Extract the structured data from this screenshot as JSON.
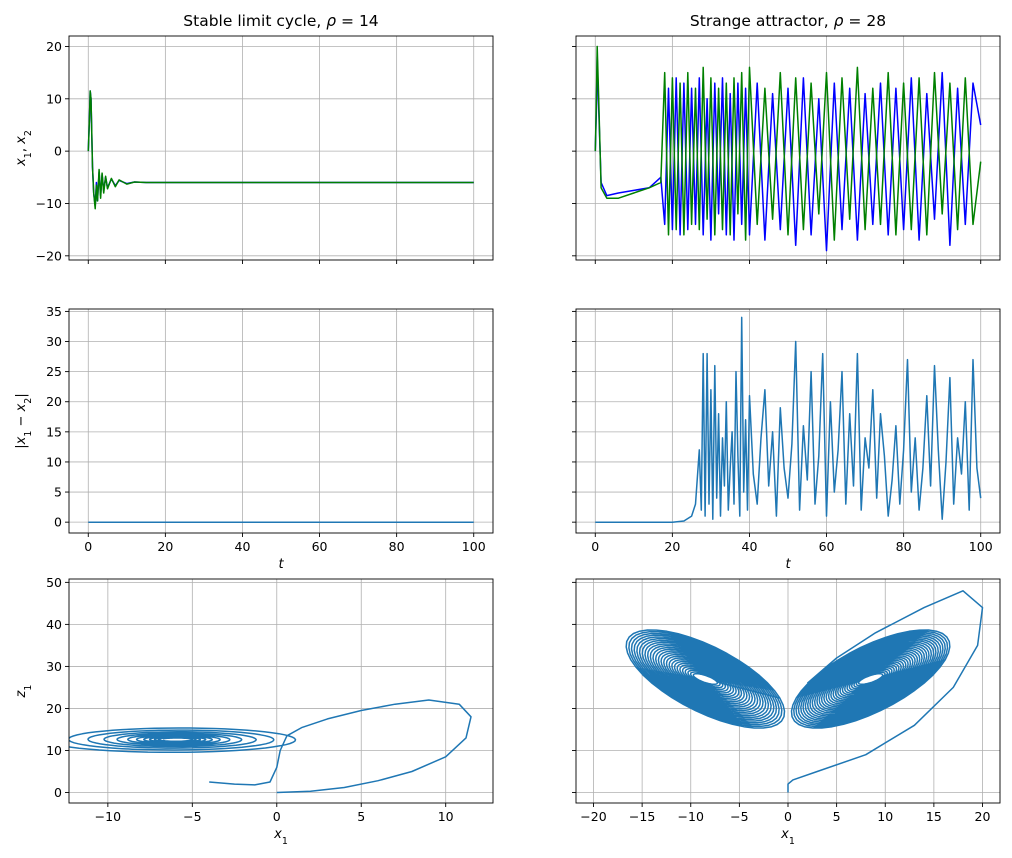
{
  "figure": {
    "colors": {
      "blue": "#0000ff",
      "green": "#008000",
      "tab_blue": "#1f77b4",
      "grid": "#b0b0b0"
    }
  },
  "chart_data": [
    {
      "id": "ts14",
      "type": "line",
      "title": "Stable limit cycle, ρ = 14",
      "xlabel": "",
      "ylabel": "x1, x2",
      "xlim": [
        -5,
        105
      ],
      "ylim": [
        -20.8,
        22
      ],
      "xticks": [
        0,
        20,
        40,
        60,
        80,
        100
      ],
      "xtick_labels": [],
      "yticks": [
        -20,
        -10,
        0,
        10,
        20
      ],
      "ytick_labels": [
        "−20",
        "−10",
        "0",
        "10",
        "20"
      ],
      "grid": true,
      "series": [
        {
          "color": "#0000ff",
          "x": [
            0,
            0.3,
            0.5,
            0.7,
            0.9,
            1.1,
            1.4,
            1.8,
            2.1,
            2.4,
            2.8,
            3.2,
            3.6,
            4.0,
            4.5,
            5.0,
            6,
            7,
            8,
            10,
            12,
            15,
            20,
            100
          ],
          "y": [
            0,
            6,
            11.5,
            10,
            4,
            -3,
            -8,
            -10.5,
            -6,
            -9.5,
            -4,
            -8.5,
            -4.5,
            -7.5,
            -5,
            -7,
            -5.3,
            -6.6,
            -5.6,
            -6.2,
            -5.9,
            -6,
            -6,
            -6
          ]
        },
        {
          "color": "#008000",
          "x": [
            0,
            0.3,
            0.5,
            0.7,
            0.9,
            1.1,
            1.4,
            1.8,
            2.1,
            2.4,
            2.8,
            3.2,
            3.6,
            4.0,
            4.5,
            5.0,
            6,
            7,
            8,
            10,
            12,
            15,
            20,
            100
          ],
          "y": [
            0,
            6,
            11.5,
            10,
            4,
            -3,
            -8,
            -11,
            -6.5,
            -9.5,
            -3.5,
            -9,
            -4.2,
            -8,
            -4.8,
            -7.2,
            -5.2,
            -6.8,
            -5.5,
            -6.3,
            -5.9,
            -6,
            -6,
            -6
          ]
        }
      ]
    },
    {
      "id": "ts28",
      "type": "line",
      "title": "Strange attractor, ρ = 28",
      "xlabel": "",
      "ylabel": "",
      "xlim": [
        -5,
        105
      ],
      "ylim": [
        -20.8,
        22
      ],
      "xticks": [
        0,
        20,
        40,
        60,
        80,
        100
      ],
      "xtick_labels": [],
      "yticks": [
        -20,
        -10,
        0,
        10,
        20
      ],
      "ytick_labels": [],
      "grid": true,
      "series": [
        {
          "color": "#0000ff",
          "x": [
            0,
            0.3,
            0.5,
            0.8,
            1.5,
            3,
            6,
            10,
            14,
            17,
            18,
            19,
            20,
            21,
            22,
            23,
            24,
            25,
            26,
            27,
            28,
            29,
            30,
            31,
            32,
            33,
            34,
            35,
            36,
            37,
            38,
            39,
            40,
            42,
            44,
            46,
            48,
            50,
            52,
            54,
            56,
            58,
            60,
            62,
            64,
            66,
            68,
            70,
            72,
            74,
            76,
            78,
            80,
            82,
            84,
            86,
            88,
            90,
            92,
            94,
            96,
            98,
            100
          ],
          "y": [
            0,
            8,
            18,
            10,
            -6,
            -8.5,
            -8,
            -7.5,
            -7,
            -5,
            -14,
            12,
            -15,
            14,
            -16,
            13,
            -15,
            12,
            -14,
            14,
            -16,
            10,
            -17,
            13,
            -12,
            14,
            -16,
            11,
            -17,
            13,
            -14,
            12,
            -16,
            13,
            -17,
            11,
            -15,
            12,
            -18,
            14,
            -16,
            10,
            -19,
            13,
            -15,
            12,
            -17,
            11,
            -14,
            13,
            -16,
            12,
            -15,
            14,
            -17,
            11,
            -13,
            15,
            -18,
            12,
            -14,
            13,
            5
          ]
        },
        {
          "color": "#008000",
          "x": [
            0,
            0.3,
            0.5,
            0.8,
            1.5,
            3,
            6,
            10,
            14,
            17,
            18,
            19,
            20,
            21,
            22,
            23,
            24,
            25,
            26,
            27,
            28,
            29,
            30,
            31,
            32,
            33,
            34,
            35,
            36,
            37,
            38,
            39,
            40,
            42,
            44,
            46,
            48,
            50,
            52,
            54,
            56,
            58,
            60,
            62,
            64,
            66,
            68,
            70,
            72,
            74,
            76,
            78,
            80,
            82,
            84,
            86,
            88,
            90,
            92,
            94,
            96,
            98,
            100
          ],
          "y": [
            0,
            10,
            20,
            12,
            -7,
            -9,
            -9,
            -8,
            -7,
            -6,
            15,
            -16,
            14,
            -15,
            13,
            -16,
            15,
            -14,
            12,
            -15,
            16,
            -13,
            14,
            -16,
            12,
            -15,
            13,
            -16,
            14,
            -12,
            15,
            -17,
            16,
            -14,
            12,
            -13,
            15,
            -16,
            14,
            -15,
            13,
            -12,
            15,
            -17,
            14,
            -13,
            16,
            -15,
            12,
            -14,
            15,
            -16,
            13,
            -15,
            14,
            -16,
            15,
            -12,
            13,
            -15,
            14,
            -14,
            -2
          ]
        }
      ]
    },
    {
      "id": "diff14",
      "type": "line",
      "title": "",
      "xlabel": "t",
      "ylabel": "|x1 − x2|",
      "xlim": [
        -5,
        105
      ],
      "ylim": [
        -1.8,
        35.4
      ],
      "xticks": [
        0,
        20,
        40,
        60,
        80,
        100
      ],
      "xtick_labels": [
        "0",
        "20",
        "40",
        "60",
        "80",
        "100"
      ],
      "yticks": [
        0,
        5,
        10,
        15,
        20,
        25,
        30,
        35
      ],
      "ytick_labels": [
        "0",
        "5",
        "10",
        "15",
        "20",
        "25",
        "30",
        "35"
      ],
      "grid": true,
      "series": [
        {
          "color": "#1f77b4",
          "x": [
            0,
            100
          ],
          "y": [
            0,
            0
          ]
        }
      ]
    },
    {
      "id": "diff28",
      "type": "line",
      "title": "",
      "xlabel": "t",
      "ylabel": "",
      "xlim": [
        -5,
        105
      ],
      "ylim": [
        -1.8,
        35.4
      ],
      "xticks": [
        0,
        20,
        40,
        60,
        80,
        100
      ],
      "xtick_labels": [
        "0",
        "20",
        "40",
        "60",
        "80",
        "100"
      ],
      "yticks": [
        0,
        5,
        10,
        15,
        20,
        25,
        30,
        35
      ],
      "ytick_labels": [],
      "grid": true,
      "series": [
        {
          "color": "#1f77b4",
          "x": [
            0,
            20,
            23,
            25,
            26,
            27,
            27.5,
            28,
            28.5,
            29,
            29.5,
            30,
            30.5,
            31,
            31.5,
            32,
            32.5,
            33,
            33.5,
            34,
            34.5,
            35,
            35.5,
            36,
            36.5,
            37,
            37.5,
            38,
            38.5,
            39,
            39.5,
            40,
            41,
            42,
            43,
            44,
            45,
            46,
            47,
            48,
            49,
            50,
            51,
            52,
            53,
            54,
            55,
            56,
            57,
            58,
            59,
            60,
            61,
            62,
            63,
            64,
            65,
            66,
            67,
            68,
            69,
            70,
            71,
            72,
            73,
            74,
            75,
            76,
            77,
            78,
            79,
            80,
            81,
            82,
            83,
            84,
            85,
            86,
            87,
            88,
            89,
            90,
            91,
            92,
            93,
            94,
            95,
            96,
            97,
            98,
            99,
            100
          ],
          "y": [
            0,
            0,
            0.2,
            1,
            3,
            12,
            2,
            28,
            1,
            28,
            3,
            22,
            0.5,
            26,
            4,
            18,
            1,
            14,
            6,
            20,
            2,
            9,
            15,
            3,
            25,
            11,
            1,
            34,
            5,
            17,
            2,
            21,
            8,
            3,
            14,
            22,
            6,
            15,
            1,
            19,
            9,
            4,
            13,
            30,
            2,
            16,
            7,
            25,
            3,
            11,
            28,
            1,
            20,
            5,
            12,
            25,
            3,
            18,
            6,
            28,
            2,
            14,
            9,
            22,
            4,
            18,
            11,
            1,
            7,
            16,
            3,
            12,
            27,
            5,
            14,
            2,
            9,
            21,
            6,
            26,
            12,
            0.5,
            10,
            24,
            3,
            14,
            8,
            20,
            2,
            27,
            9,
            4
          ]
        }
      ]
    },
    {
      "id": "phase14",
      "type": "line",
      "title": "",
      "xlabel": "x1",
      "ylabel": "z1",
      "xlim": [
        -12.3,
        12.8
      ],
      "ylim": [
        -2.5,
        50.8
      ],
      "xticks": [
        -10,
        -5,
        0,
        5,
        10
      ],
      "xtick_labels": [
        "−10",
        "−5",
        "0",
        "5",
        "10"
      ],
      "yticks": [
        0,
        10,
        20,
        30,
        40,
        50
      ],
      "ytick_labels": [
        "0",
        "10",
        "20",
        "30",
        "40",
        "50"
      ],
      "grid": true,
      "series": [
        {
          "color": "#1f77b4",
          "outward": {
            "x": [
              0,
              2,
              4,
              6,
              8,
              10,
              11.2,
              11.5,
              10.8,
              9,
              7,
              5,
              3,
              1.5,
              0.6,
              0.2,
              0.0,
              -0.4,
              -1.3,
              -2.5,
              -4
            ],
            "y": [
              0,
              0.3,
              1.2,
              2.8,
              5,
              8.5,
              13,
              18,
              21,
              22,
              21,
              19.5,
              17.5,
              15.5,
              13.5,
              10,
              6,
              2.5,
              1.8,
              2,
              2.5
            ]
          },
          "spiral": {
            "cx": -5.95,
            "cy": 12.6,
            "a0": 7.9,
            "b0": 3.6,
            "tilt_deg": -25,
            "turns": 11,
            "decay": 0.2
          }
        }
      ]
    },
    {
      "id": "phase28",
      "type": "line",
      "title": "",
      "xlabel": "x1",
      "ylabel": "",
      "xlim": [
        -21.8,
        21.8
      ],
      "ylim": [
        -2.5,
        50.8
      ],
      "xticks": [
        -20,
        -15,
        -10,
        -5,
        0,
        5,
        10,
        15,
        20
      ],
      "xtick_labels": [
        "−20",
        "−15",
        "−10",
        "−5",
        "0",
        "5",
        "10",
        "15",
        "20"
      ],
      "yticks": [
        0,
        10,
        20,
        30,
        40,
        50
      ],
      "ytick_labels": [],
      "grid": true,
      "series": [
        {
          "color": "#1f77b4",
          "transient": {
            "x": [
              0,
              0,
              0.5,
              3,
              8,
              13,
              17,
              19.5,
              20,
              18,
              14,
              9,
              5,
              2
            ],
            "y": [
              0,
              2,
              3,
              5,
              9,
              16,
              25,
              35,
              44,
              48,
              44,
              38,
              32,
              26
            ]
          },
          "wings": [
            {
              "cx": -8.5,
              "cy": 27,
              "rmin": 1.5,
              "rmax": 9.5,
              "ymin_r": 1.5,
              "ymax_r": 15.5,
              "tilt_deg": 32,
              "loops": 26
            },
            {
              "cx": 8.5,
              "cy": 27,
              "rmin": 1.5,
              "rmax": 9.5,
              "ymin_r": 1.5,
              "ymax_r": 15.5,
              "tilt_deg": -32,
              "loops": 30
            }
          ]
        }
      ]
    }
  ]
}
